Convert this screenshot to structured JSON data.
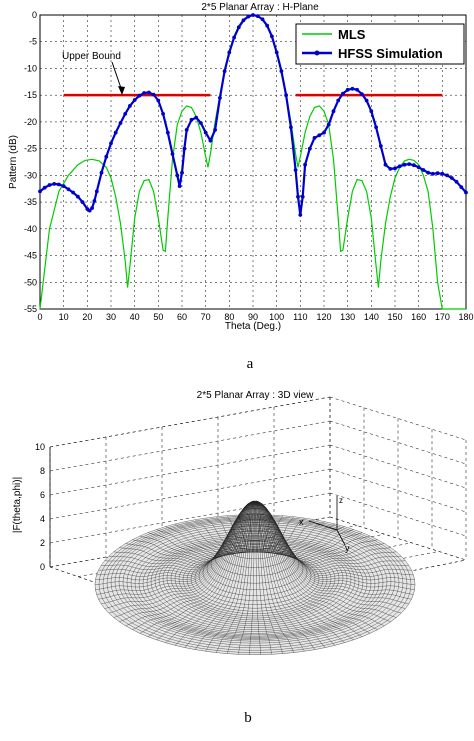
{
  "figure_a": {
    "caption": "a",
    "chart_data": {
      "type": "line",
      "title": "2*5  Planar  Array : H-Plane",
      "xlabel": "Theta (Deg.)",
      "ylabel": "Pattern (dB)",
      "xlim": [
        0,
        180
      ],
      "ylim": [
        -55,
        0
      ],
      "xticks": [
        0,
        10,
        20,
        30,
        40,
        50,
        60,
        70,
        80,
        90,
        100,
        110,
        120,
        130,
        140,
        150,
        160,
        170,
        180
      ],
      "yticks": [
        0,
        -5,
        -10,
        -15,
        -20,
        -25,
        -30,
        -35,
        -40,
        -45,
        -50,
        -55
      ],
      "grid": true,
      "legend_position": "top-right",
      "annotation": {
        "text": "Upper Bound",
        "target_x": 35,
        "target_y": -15
      },
      "series": [
        {
          "name": "MLS",
          "color": "#00cc00",
          "marker": "none",
          "x": [
            0,
            4,
            8,
            12,
            16,
            19,
            22,
            25,
            28,
            30,
            32,
            34,
            36,
            37,
            38,
            40,
            42,
            44,
            46,
            48,
            50,
            52,
            53,
            54,
            56,
            58,
            60,
            62,
            64,
            66,
            68,
            70,
            71,
            72,
            74,
            76,
            78,
            80,
            82,
            84,
            86,
            88,
            90,
            92,
            94,
            96,
            98,
            100,
            102,
            104,
            106,
            108,
            109,
            110,
            112,
            114,
            116,
            118,
            120,
            122,
            124,
            126,
            127,
            128,
            130,
            132,
            134,
            136,
            138,
            140,
            142,
            143,
            144,
            146,
            148,
            150,
            152,
            154,
            156,
            158,
            160,
            162,
            164,
            166,
            168,
            170,
            172,
            174,
            176,
            178,
            180
          ],
          "y": [
            -55,
            -40,
            -33,
            -30,
            -28,
            -27.2,
            -27,
            -27.3,
            -28.5,
            -30.5,
            -34,
            -39,
            -46,
            -51,
            -47,
            -38,
            -33,
            -31,
            -30.8,
            -33,
            -38,
            -44,
            -44.2,
            -38,
            -27,
            -20.5,
            -18,
            -17,
            -17.3,
            -19,
            -22,
            -26.5,
            -28.5,
            -26,
            -20,
            -15,
            -11,
            -7,
            -4,
            -2,
            -0.8,
            -0.2,
            0,
            -0.2,
            -0.8,
            -2,
            -4,
            -7,
            -11,
            -15,
            -20,
            -26,
            -28.5,
            -26.5,
            -22,
            -19,
            -17.3,
            -17,
            -18,
            -20.5,
            -27,
            -38,
            -44.2,
            -44,
            -38,
            -33,
            -30.8,
            -31,
            -33,
            -38,
            -47,
            -51,
            -46,
            -39,
            -34,
            -30.5,
            -28.5,
            -27.3,
            -27,
            -27.2,
            -28,
            -30,
            -33,
            -40,
            -50,
            -55,
            -55,
            -55,
            -55,
            -55,
            -55
          ]
        },
        {
          "name": "HFSS Simulation",
          "color": "#0000cc",
          "marker": "dot",
          "x": [
            0,
            2,
            4,
            6,
            8,
            10,
            12,
            14,
            16,
            18,
            20,
            21,
            22,
            23,
            24,
            26,
            28,
            30,
            32,
            34,
            36,
            38,
            40,
            42,
            44,
            46,
            48,
            50,
            52,
            54,
            56,
            58,
            59,
            60,
            61,
            62,
            64,
            66,
            68,
            70,
            72,
            74,
            76,
            78,
            80,
            82,
            84,
            86,
            88,
            90,
            92,
            94,
            96,
            98,
            100,
            102,
            104,
            106,
            108,
            109,
            110,
            111,
            112,
            114,
            116,
            118,
            120,
            122,
            124,
            126,
            128,
            130,
            132,
            134,
            136,
            138,
            140,
            142,
            144,
            146,
            148,
            150,
            152,
            154,
            156,
            158,
            160,
            162,
            164,
            166,
            168,
            170,
            172,
            174,
            176,
            178,
            180
          ],
          "y": [
            -33,
            -32.3,
            -31.8,
            -31.6,
            -31.7,
            -32,
            -32.6,
            -33.2,
            -34,
            -35,
            -36.3,
            -36.6,
            -36.1,
            -34.8,
            -33,
            -29.5,
            -26.5,
            -24,
            -22,
            -20.2,
            -18.5,
            -17,
            -15.9,
            -15.1,
            -14.6,
            -14.5,
            -14.9,
            -16,
            -18.5,
            -22,
            -26,
            -30,
            -32,
            -29.5,
            -25,
            -21.5,
            -19.6,
            -19.2,
            -20.2,
            -22,
            -23.5,
            -21.5,
            -15.5,
            -10.5,
            -7,
            -4.2,
            -2.3,
            -1,
            -0.3,
            0,
            -0.2,
            -0.8,
            -2,
            -4,
            -7,
            -10.5,
            -15,
            -21,
            -29,
            -34,
            -37.4,
            -34,
            -28,
            -25,
            -23,
            -22.5,
            -22,
            -20.5,
            -18,
            -16,
            -14.7,
            -14,
            -13.8,
            -14,
            -14.8,
            -16,
            -18,
            -21,
            -24.5,
            -28,
            -28.8,
            -28.7,
            -28.3,
            -28,
            -27.9,
            -28.1,
            -28.5,
            -29,
            -29.5,
            -29.7,
            -29.6,
            -29.7,
            -30,
            -30.5,
            -31.2,
            -32.2,
            -33.2
          ]
        },
        {
          "name": "Upper Bound",
          "color": "#dd0000",
          "marker": "none",
          "segments": [
            [
              10,
              72,
              -15
            ],
            [
              108,
              170,
              -15
            ]
          ]
        }
      ]
    }
  },
  "figure_b": {
    "caption": "b",
    "chart_data": {
      "type": "surface",
      "title": "2*5  Planar  Array :  3D view",
      "zlabel": "|F(theta,phi)|",
      "zlim": [
        0,
        10
      ],
      "zticks": [
        0,
        2,
        4,
        6,
        8,
        10
      ],
      "peak": 6.8,
      "grid": true,
      "axis_glyphs": {
        "x": "x",
        "y": "y",
        "z": "z"
      }
    }
  }
}
